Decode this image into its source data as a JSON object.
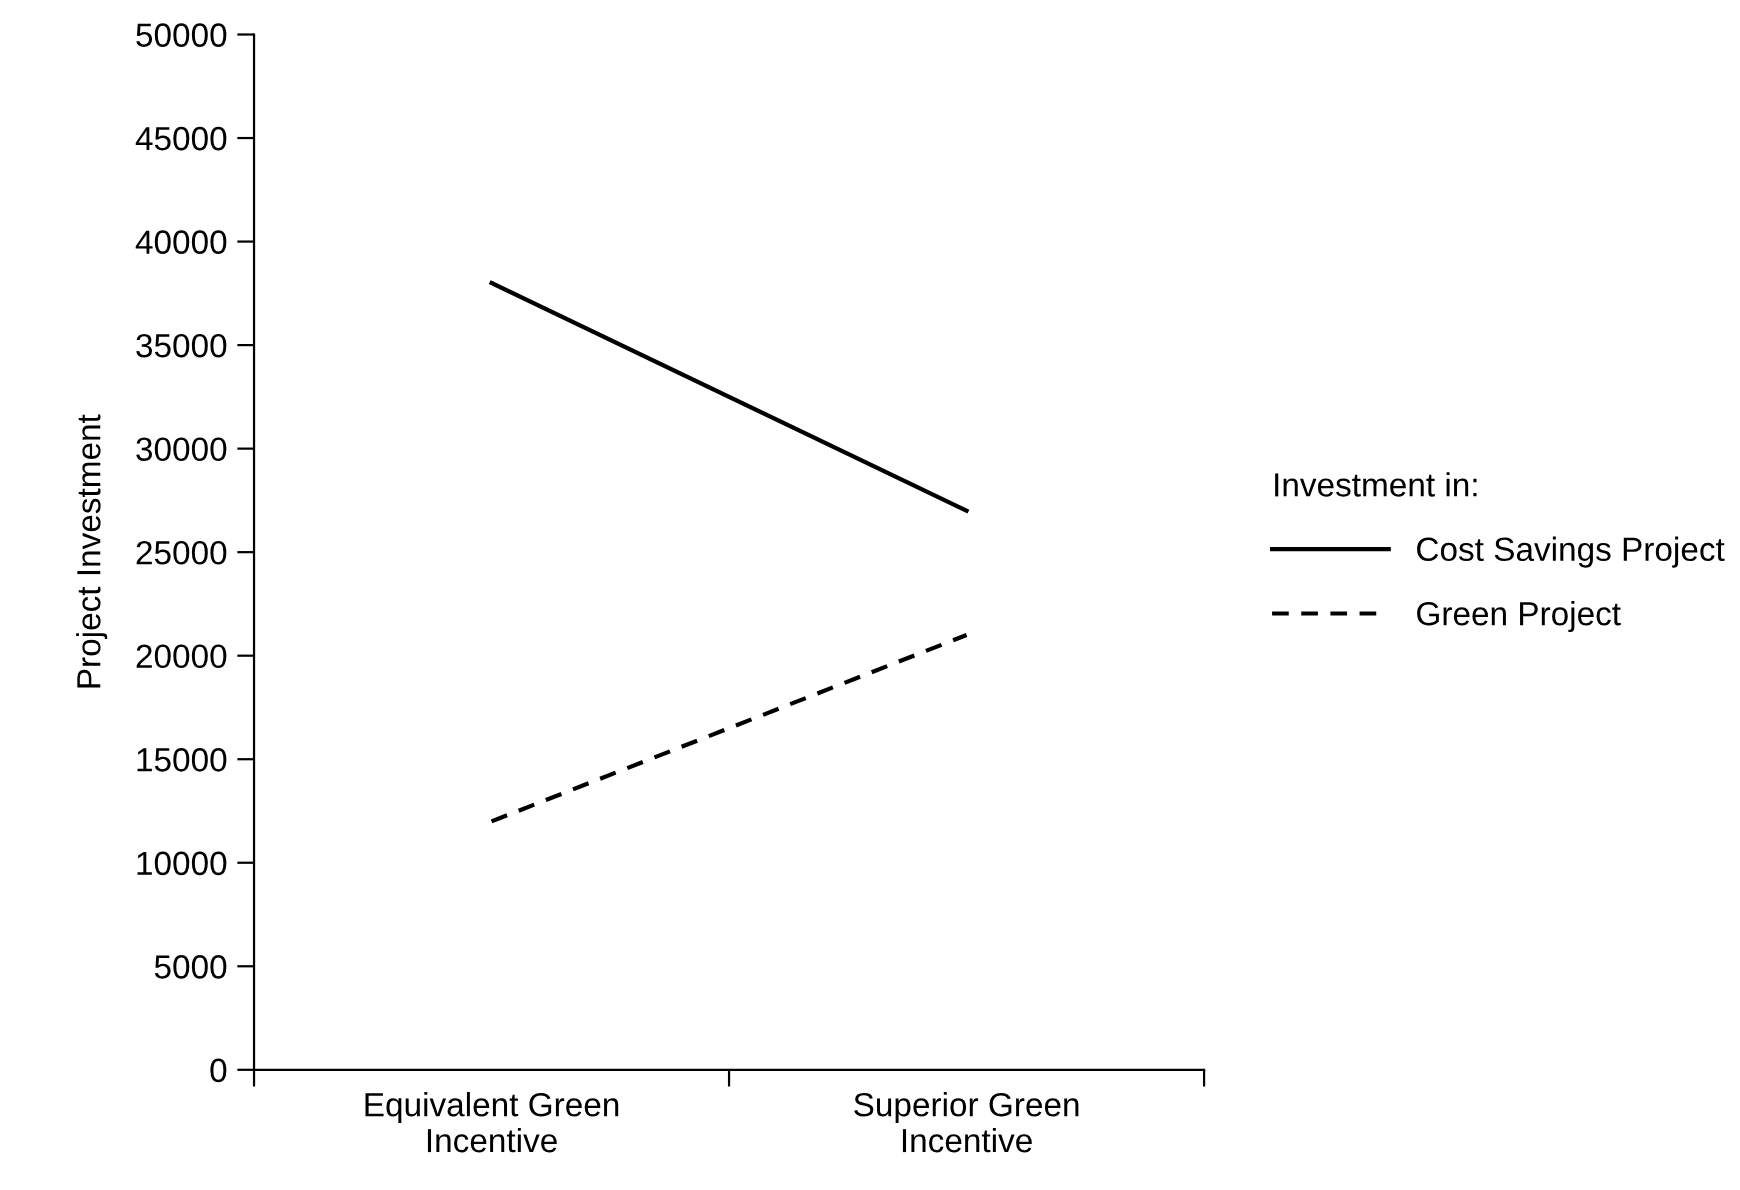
{
  "chart_data": {
    "type": "line",
    "ylabel": "Project Investment",
    "legend_title": "Investment in:",
    "categories": [
      "Equivalent Green\nIncentive",
      "Superior Green\nIncentive"
    ],
    "series": [
      {
        "name": "Cost Savings Project",
        "color": "#000000",
        "values": [
          38000,
          27000
        ],
        "line_style": "solid"
      },
      {
        "name": "Green Project",
        "color": "#000000",
        "values": [
          12000,
          21000
        ],
        "line_style": "dashed"
      }
    ],
    "ylim": [
      0,
      50000
    ],
    "yticks": [
      0,
      5000,
      10000,
      15000,
      20000,
      25000,
      30000,
      35000,
      40000,
      45000,
      50000
    ],
    "grid": false,
    "legend": "right",
    "marker": "none"
  }
}
